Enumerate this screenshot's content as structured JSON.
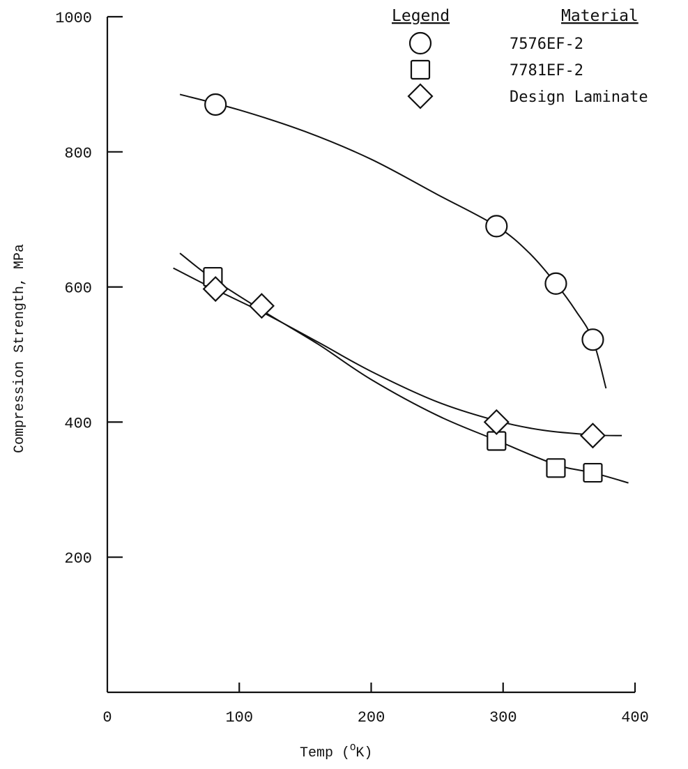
{
  "chart_data": {
    "type": "scatter",
    "title": "",
    "xlabel": "Temp (",
    "xlabel_sup": "O",
    "xlabel_end": "K)",
    "ylabel": "Compression Strength, MPa",
    "xlim": [
      0,
      400
    ],
    "ylim": [
      0,
      1000
    ],
    "x_ticks": [
      "0",
      "100",
      "200",
      "300",
      "400"
    ],
    "y_ticks": [
      "200",
      "400",
      "600",
      "800",
      "1000"
    ],
    "grid": false,
    "legend": {
      "position": "top-right",
      "legend_header": "Legend",
      "material_header": "Material"
    },
    "series": [
      {
        "name": "7576EF-2",
        "marker": "circle",
        "points": [
          [
            82,
            870
          ],
          [
            295,
            690
          ],
          [
            340,
            605
          ],
          [
            368,
            522
          ]
        ],
        "fit_curve": [
          [
            55,
            885
          ],
          [
            100,
            862
          ],
          [
            150,
            830
          ],
          [
            200,
            789
          ],
          [
            250,
            737
          ],
          [
            295,
            690
          ],
          [
            320,
            650
          ],
          [
            340,
            605
          ],
          [
            355,
            565
          ],
          [
            368,
            522
          ],
          [
            378,
            450
          ]
        ]
      },
      {
        "name": "7781EF-2",
        "marker": "square",
        "points": [
          [
            80,
            615
          ],
          [
            295,
            372
          ],
          [
            340,
            332
          ],
          [
            368,
            325
          ]
        ],
        "fit_curve": [
          [
            55,
            650
          ],
          [
            80,
            612
          ],
          [
            120,
            562
          ],
          [
            160,
            515
          ],
          [
            200,
            463
          ],
          [
            250,
            410
          ],
          [
            295,
            373
          ],
          [
            340,
            337
          ],
          [
            368,
            325
          ],
          [
            395,
            310
          ]
        ]
      },
      {
        "name": "Design Laminate",
        "marker": "diamond",
        "points": [
          [
            82,
            597
          ],
          [
            117,
            572
          ],
          [
            295,
            400
          ],
          [
            368,
            380
          ]
        ],
        "fit_curve": [
          [
            50,
            628
          ],
          [
            80,
            598
          ],
          [
            120,
            560
          ],
          [
            160,
            518
          ],
          [
            200,
            475
          ],
          [
            250,
            430
          ],
          [
            295,
            402
          ],
          [
            330,
            388
          ],
          [
            368,
            381
          ],
          [
            390,
            380
          ]
        ]
      }
    ]
  }
}
